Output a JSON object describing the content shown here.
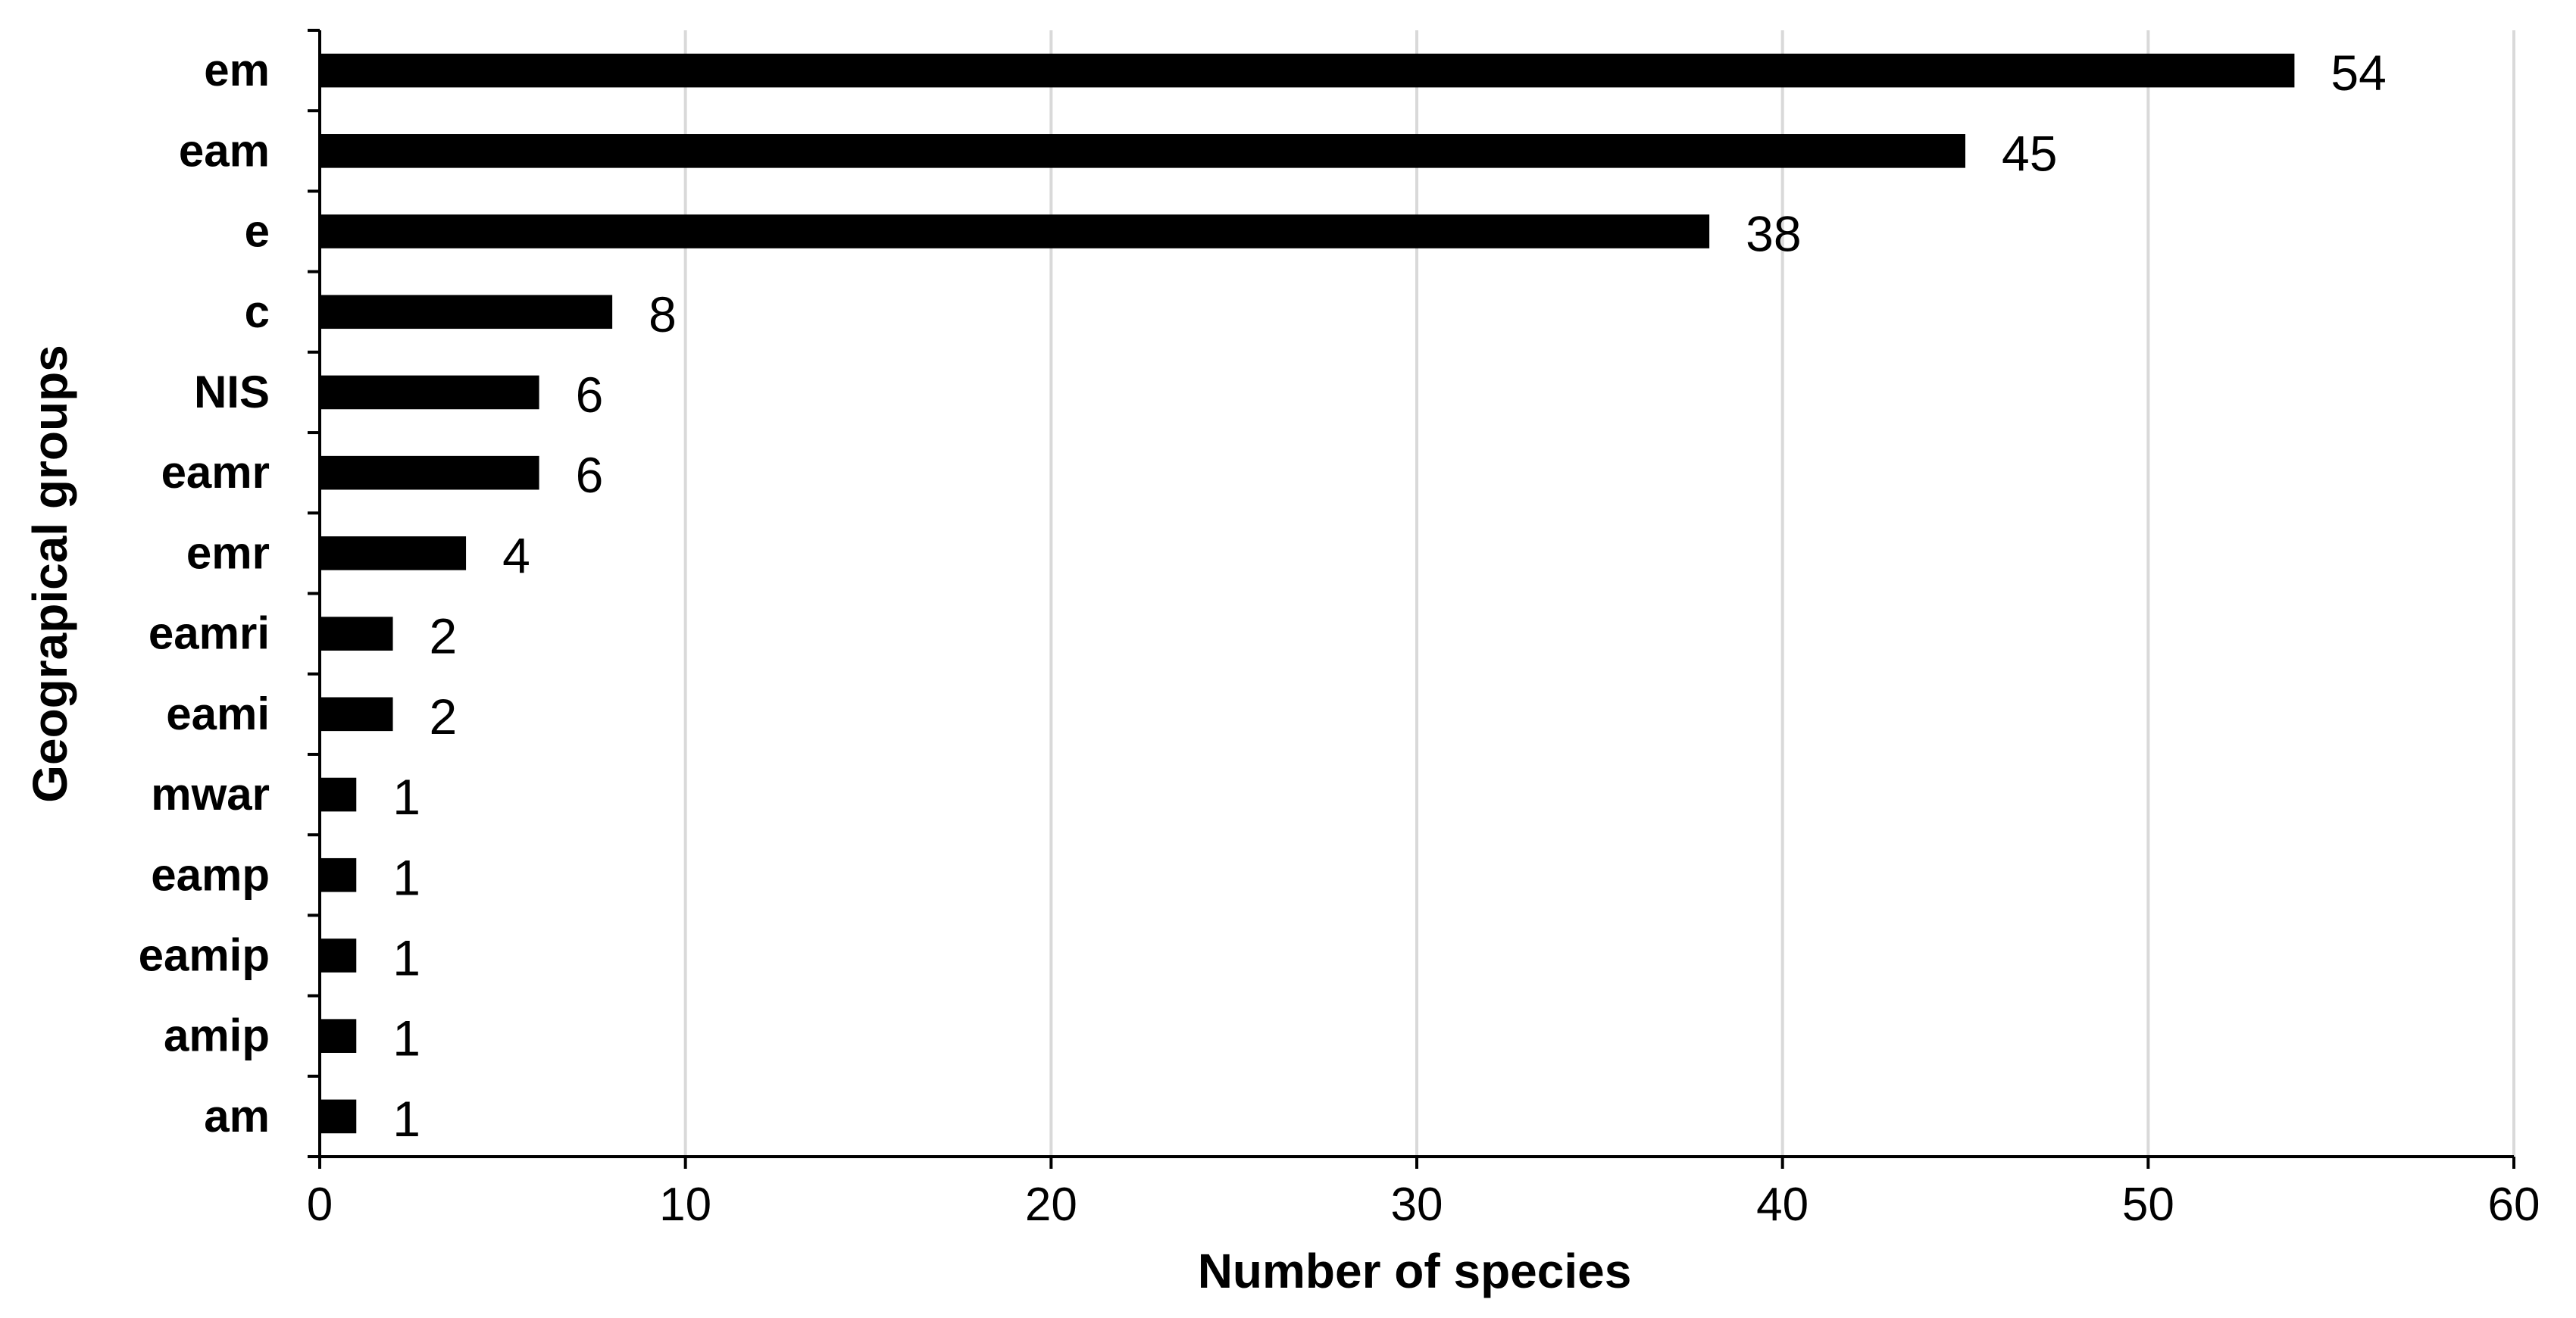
{
  "chart_data": {
    "type": "bar",
    "orientation": "horizontal",
    "categories": [
      "em",
      "eam",
      "e",
      "c",
      "NIS",
      "eamr",
      "emr",
      "eamri",
      "eami",
      "mwar",
      "eamp",
      "eamip",
      "amip",
      "am"
    ],
    "values": [
      54,
      45,
      38,
      8,
      6,
      6,
      4,
      2,
      2,
      1,
      1,
      1,
      1,
      1
    ],
    "title": "",
    "xlabel": "Number of species",
    "ylabel": "Geograpical groups",
    "xlim": [
      0,
      60
    ],
    "xticks": [
      0,
      10,
      20,
      30,
      40,
      50,
      60
    ],
    "grid": "vertical",
    "bar_color": "#000000",
    "grid_color": "#d9d9d9",
    "data_labels": true
  }
}
